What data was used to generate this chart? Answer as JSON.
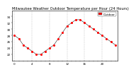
{
  "title": "Milwaukee Weather Outdoor Temperature per Hour (24 Hours)",
  "hours": [
    0,
    1,
    2,
    3,
    4,
    5,
    6,
    7,
    8,
    9,
    10,
    11,
    12,
    13,
    14,
    15,
    16,
    17,
    18,
    19,
    20,
    21,
    22,
    23
  ],
  "temperatures": [
    28,
    27,
    25,
    24,
    23,
    22,
    22,
    23,
    24,
    25,
    27,
    29,
    31,
    32,
    33,
    33,
    32,
    31,
    30,
    29,
    28,
    27,
    26,
    25
  ],
  "dot_color": "#ff0000",
  "line_color": "#000000",
  "bg_color": "#ffffff",
  "grid_color": "#999999",
  "ylim_min": 20,
  "ylim_max": 36,
  "yticks": [
    22,
    24,
    26,
    28,
    30,
    32,
    34
  ],
  "xticks": [
    0,
    4,
    8,
    12,
    16,
    20
  ],
  "legend_label": "Outdoor",
  "legend_color": "#ff0000",
  "title_fontsize": 3.8,
  "tick_fontsize": 3.0
}
